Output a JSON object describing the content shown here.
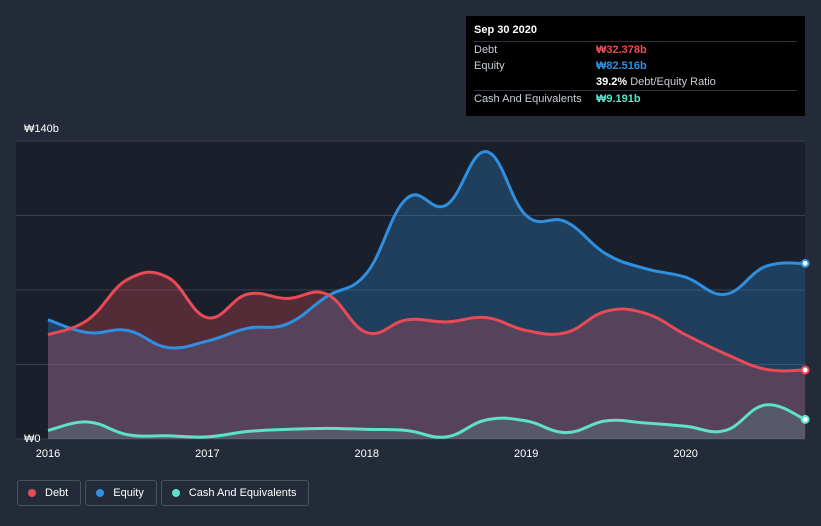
{
  "tooltip": {
    "date": "Sep 30 2020",
    "rows": [
      {
        "label": "Debt",
        "value": "₩32.378b",
        "color": "#e84b55"
      },
      {
        "label": "Equity",
        "value": "₩82.516b",
        "color": "#2f8fe0"
      },
      {
        "label": "",
        "value": "39.2%",
        "extra": "Debt/Equity Ratio",
        "color": "#ffffff"
      },
      {
        "label": "Cash And Equivalents",
        "value": "₩9.191b",
        "color": "#5fe0c8"
      }
    ]
  },
  "chart_data": {
    "type": "area",
    "title": "",
    "xlabel": "",
    "ylabel": "",
    "ylim": [
      0,
      140
    ],
    "y_ticks": [
      {
        "value": 140,
        "label": "₩140b"
      },
      {
        "value": 0,
        "label": "₩0"
      }
    ],
    "x_ticks": [
      {
        "value": 2016,
        "label": "2016"
      },
      {
        "value": 2017,
        "label": "2017"
      },
      {
        "value": 2018,
        "label": "2018"
      },
      {
        "value": 2019,
        "label": "2019"
      },
      {
        "value": 2020,
        "label": "2020"
      }
    ],
    "x": [
      2016.0,
      2016.25,
      2016.5,
      2016.75,
      2017.0,
      2017.25,
      2017.5,
      2017.75,
      2018.0,
      2018.25,
      2018.5,
      2018.75,
      2019.0,
      2019.25,
      2019.5,
      2019.75,
      2020.0,
      2020.25,
      2020.5,
      2020.75
    ],
    "series": [
      {
        "name": "Debt",
        "color": "#e84b55",
        "values": [
          49.0,
          56.0,
          75.0,
          76.0,
          57.0,
          68.0,
          66.0,
          68.0,
          50.0,
          56.0,
          55.0,
          57.0,
          51.0,
          50.0,
          60.0,
          59.0,
          49.0,
          40.0,
          32.8,
          32.4
        ]
      },
      {
        "name": "Equity",
        "color": "#2f8fe0",
        "values": [
          56.0,
          50.0,
          51.0,
          43.0,
          46.0,
          52.0,
          54.0,
          67.0,
          78.0,
          113.0,
          110.0,
          135.0,
          105.0,
          102.0,
          87.0,
          80.0,
          76.0,
          68.0,
          81.0,
          82.5
        ]
      },
      {
        "name": "Cash And Equivalents",
        "color": "#5fe0c8",
        "values": [
          4.0,
          8.0,
          2.0,
          1.5,
          1.0,
          3.5,
          4.5,
          5.0,
          4.5,
          4.0,
          1.0,
          9.0,
          8.5,
          3.0,
          8.5,
          7.5,
          6.0,
          4.0,
          16.0,
          9.2
        ]
      }
    ],
    "legend": [
      "Debt",
      "Equity",
      "Cash And Equivalents"
    ],
    "legend_position": "bottom-left"
  }
}
